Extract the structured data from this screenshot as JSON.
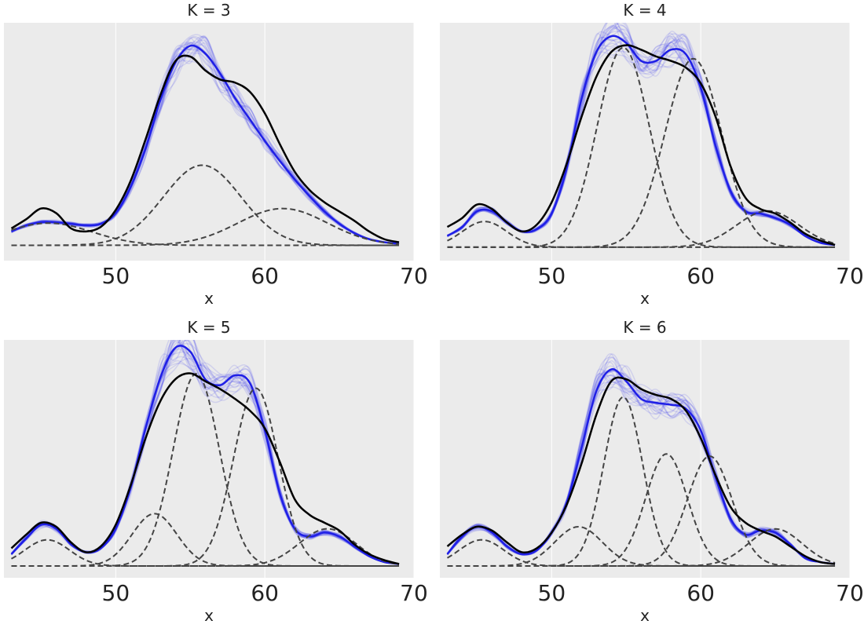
{
  "figure": {
    "colors": {
      "background": "#ebebeb",
      "grid": "#ffffff",
      "posterior_samples": "#3b3bf0",
      "posterior_mean": "#1f1fe6",
      "data_kde": "#000000",
      "components": "#444444"
    }
  },
  "chart_data": [
    {
      "type": "line",
      "title": "K = 3",
      "xlabel": "x",
      "ylabel": "",
      "xlim": [
        42.5,
        70
      ],
      "ylim": [
        -0.01,
        0.145
      ],
      "xticks": [
        "50",
        "60",
        "70"
      ],
      "grid": true,
      "series": [
        {
          "name": "data KDE",
          "style": "solid-black",
          "x": [
            43,
            44,
            45,
            46,
            47,
            48,
            49,
            50,
            51,
            52,
            53,
            54,
            55,
            56,
            57,
            58,
            59,
            60,
            61,
            62,
            63,
            64,
            65,
            66,
            67,
            68,
            69
          ],
          "y": [
            0.011,
            0.017,
            0.024,
            0.021,
            0.011,
            0.009,
            0.012,
            0.023,
            0.042,
            0.069,
            0.098,
            0.12,
            0.123,
            0.114,
            0.108,
            0.106,
            0.1,
            0.086,
            0.066,
            0.048,
            0.036,
            0.028,
            0.022,
            0.016,
            0.009,
            0.004,
            0.002
          ]
        },
        {
          "name": "posterior mean",
          "style": "solid-blue",
          "x": [
            43,
            44,
            45,
            46,
            47,
            48,
            49,
            50,
            51,
            52,
            53,
            54,
            55,
            56,
            57,
            58,
            59,
            60,
            61,
            62,
            63,
            64,
            65,
            66,
            67,
            68,
            69
          ],
          "y": [
            0.009,
            0.013,
            0.015,
            0.015,
            0.014,
            0.013,
            0.014,
            0.021,
            0.038,
            0.063,
            0.095,
            0.119,
            0.13,
            0.125,
            0.112,
            0.096,
            0.082,
            0.068,
            0.055,
            0.043,
            0.032,
            0.022,
            0.014,
            0.008,
            0.004,
            0.002,
            0.001
          ]
        },
        {
          "name": "component 1",
          "style": "dashed",
          "mu": 45.5,
          "sigma": 2.9,
          "weight": 0.105
        },
        {
          "name": "component 2",
          "style": "dashed",
          "mu": 55.8,
          "sigma": 2.6,
          "weight": 0.34
        },
        {
          "name": "component 3",
          "style": "dashed",
          "mu": 61.2,
          "sigma": 3.0,
          "weight": 0.18
        }
      ]
    },
    {
      "type": "line",
      "title": "K = 4",
      "xlabel": "x",
      "ylabel": "",
      "xlim": [
        42.5,
        70
      ],
      "ylim": [
        -0.006,
        0.1
      ],
      "xticks": [
        "50",
        "60",
        "70"
      ],
      "grid": true,
      "series": [
        {
          "name": "data KDE",
          "style": "solid-black",
          "x": [
            43,
            44,
            45,
            46,
            47,
            48,
            49,
            50,
            51,
            52,
            53,
            54,
            55,
            56,
            57,
            58,
            59,
            60,
            61,
            62,
            63,
            64,
            65,
            66,
            67,
            68,
            69
          ],
          "y": [
            0.009,
            0.013,
            0.019,
            0.017,
            0.011,
            0.007,
            0.01,
            0.02,
            0.037,
            0.058,
            0.076,
            0.087,
            0.09,
            0.088,
            0.085,
            0.083,
            0.08,
            0.073,
            0.058,
            0.036,
            0.022,
            0.017,
            0.015,
            0.011,
            0.006,
            0.003,
            0.001
          ]
        },
        {
          "name": "posterior mean",
          "style": "solid-blue",
          "x": [
            43,
            44,
            45,
            46,
            47,
            48,
            49,
            50,
            51,
            52,
            53,
            54,
            55,
            56,
            57,
            58,
            59,
            60,
            61,
            62,
            63,
            64,
            65,
            66,
            67,
            68,
            69
          ],
          "y": [
            0.005,
            0.009,
            0.016,
            0.016,
            0.011,
            0.007,
            0.008,
            0.015,
            0.035,
            0.066,
            0.087,
            0.094,
            0.091,
            0.083,
            0.083,
            0.088,
            0.086,
            0.071,
            0.045,
            0.025,
            0.016,
            0.015,
            0.013,
            0.01,
            0.005,
            0.002,
            0.001
          ]
        },
        {
          "name": "component 1",
          "style": "dashed",
          "mu": 45.5,
          "sigma": 1.5,
          "weight": 0.043
        },
        {
          "name": "component 2",
          "style": "dashed",
          "mu": 54.8,
          "sigma": 1.75,
          "weight": 0.39
        },
        {
          "name": "component 3",
          "style": "dashed",
          "mu": 59.5,
          "sigma": 1.9,
          "weight": 0.4
        },
        {
          "name": "component 4",
          "style": "dashed",
          "mu": 64.5,
          "sigma": 2.1,
          "weight": 0.085
        }
      ]
    },
    {
      "type": "line",
      "title": "K = 5",
      "xlabel": "x",
      "ylabel": "",
      "xlim": [
        42.5,
        70
      ],
      "ylim": [
        -0.006,
        0.115
      ],
      "xticks": [
        "50",
        "60",
        "70"
      ],
      "grid": true,
      "series": [
        {
          "name": "data KDE",
          "style": "solid-black",
          "x": [
            43,
            44,
            45,
            46,
            47,
            48,
            49,
            50,
            51,
            52,
            53,
            54,
            55,
            56,
            57,
            58,
            59,
            60,
            61,
            62,
            63,
            64,
            65,
            66,
            67,
            68,
            69
          ],
          "y": [
            0.009,
            0.016,
            0.022,
            0.02,
            0.012,
            0.007,
            0.01,
            0.021,
            0.041,
            0.065,
            0.084,
            0.095,
            0.098,
            0.094,
            0.09,
            0.085,
            0.079,
            0.07,
            0.053,
            0.034,
            0.026,
            0.022,
            0.018,
            0.011,
            0.006,
            0.003,
            0.001
          ]
        },
        {
          "name": "posterior mean",
          "style": "solid-blue",
          "x": [
            43,
            44,
            45,
            46,
            47,
            48,
            49,
            50,
            51,
            52,
            53,
            54,
            55,
            56,
            57,
            58,
            59,
            60,
            61,
            62,
            63,
            64,
            65,
            66,
            67,
            68,
            69
          ],
          "y": [
            0.006,
            0.014,
            0.021,
            0.019,
            0.011,
            0.007,
            0.009,
            0.019,
            0.04,
            0.07,
            0.096,
            0.111,
            0.109,
            0.095,
            0.092,
            0.097,
            0.093,
            0.069,
            0.037,
            0.019,
            0.015,
            0.017,
            0.015,
            0.01,
            0.005,
            0.002,
            0.001
          ]
        },
        {
          "name": "component 1",
          "style": "dashed",
          "mu": 45.4,
          "sigma": 1.5,
          "weight": 0.05
        },
        {
          "name": "component 2",
          "style": "dashed",
          "mu": 52.6,
          "sigma": 1.5,
          "weight": 0.1
        },
        {
          "name": "component 3",
          "style": "dashed",
          "mu": 55.4,
          "sigma": 1.55,
          "weight": 0.38
        },
        {
          "name": "component 4",
          "style": "dashed",
          "mu": 59.4,
          "sigma": 1.5,
          "weight": 0.34
        },
        {
          "name": "component 5",
          "style": "dashed",
          "mu": 64.2,
          "sigma": 1.9,
          "weight": 0.09
        }
      ]
    },
    {
      "type": "line",
      "title": "K = 6",
      "xlabel": "x",
      "ylabel": "",
      "xlim": [
        42.5,
        70
      ],
      "ylim": [
        -0.006,
        0.115
      ],
      "xticks": [
        "50",
        "60",
        "70"
      ],
      "grid": true,
      "series": [
        {
          "name": "data KDE",
          "style": "solid-black",
          "x": [
            43,
            44,
            45,
            46,
            47,
            48,
            49,
            50,
            51,
            52,
            53,
            54,
            55,
            56,
            57,
            58,
            59,
            60,
            61,
            62,
            63,
            64,
            65,
            66,
            67,
            68,
            69
          ],
          "y": [
            0.01,
            0.016,
            0.02,
            0.018,
            0.012,
            0.007,
            0.009,
            0.017,
            0.031,
            0.052,
            0.077,
            0.094,
            0.095,
            0.09,
            0.087,
            0.085,
            0.079,
            0.065,
            0.046,
            0.03,
            0.022,
            0.018,
            0.015,
            0.01,
            0.005,
            0.002,
            0.001
          ]
        },
        {
          "name": "posterior mean",
          "style": "solid-blue",
          "x": [
            43,
            44,
            45,
            46,
            47,
            48,
            49,
            50,
            51,
            52,
            53,
            54,
            55,
            56,
            57,
            58,
            59,
            60,
            61,
            62,
            63,
            64,
            65,
            66,
            67,
            68,
            69
          ],
          "y": [
            0.006,
            0.015,
            0.02,
            0.017,
            0.01,
            0.006,
            0.008,
            0.017,
            0.032,
            0.06,
            0.089,
            0.1,
            0.094,
            0.085,
            0.083,
            0.082,
            0.08,
            0.069,
            0.045,
            0.024,
            0.016,
            0.018,
            0.017,
            0.011,
            0.004,
            0.002,
            0.001
          ]
        },
        {
          "name": "component 1",
          "style": "dashed",
          "mu": 45.3,
          "sigma": 1.5,
          "weight": 0.05
        },
        {
          "name": "component 2",
          "style": "dashed",
          "mu": 51.8,
          "sigma": 1.6,
          "weight": 0.08
        },
        {
          "name": "component 3",
          "style": "dashed",
          "mu": 54.8,
          "sigma": 1.3,
          "weight": 0.28
        },
        {
          "name": "component 4",
          "style": "dashed",
          "mu": 57.7,
          "sigma": 1.4,
          "weight": 0.2
        },
        {
          "name": "component 5",
          "style": "dashed",
          "mu": 60.6,
          "sigma": 1.5,
          "weight": 0.21
        },
        {
          "name": "component 6",
          "style": "dashed",
          "mu": 65.0,
          "sigma": 1.8,
          "weight": 0.085
        }
      ]
    }
  ]
}
